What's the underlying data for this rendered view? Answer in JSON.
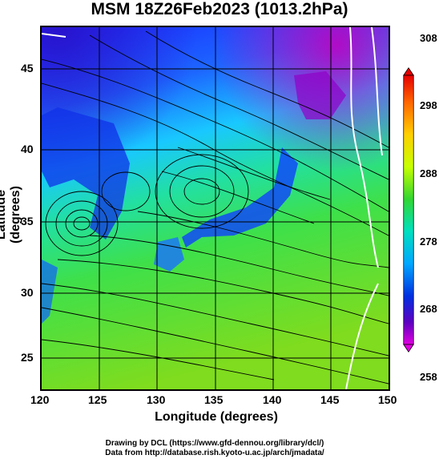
{
  "title": "MSM 18Z26Feb2023 (1013.2hPa)",
  "map": {
    "lon_range": [
      120,
      150
    ],
    "lat_range": [
      22.5,
      48
    ],
    "field": "temperature (K)",
    "streamlines": true,
    "gridlines": true
  },
  "x_axis": {
    "label": "Longitude (degrees)",
    "ticks": [
      "120",
      "125",
      "130",
      "135",
      "140",
      "145",
      "150"
    ]
  },
  "y_axis": {
    "label": "Latitude  (degrees)",
    "ticks": [
      "45",
      "40",
      "35",
      "30",
      "25"
    ]
  },
  "colorbar": {
    "labels": [
      "308",
      "298",
      "288",
      "278",
      "268",
      "258"
    ],
    "colors": [
      "#e60000",
      "#ff8c00",
      "#ffd700",
      "#aaff00",
      "#33cc33",
      "#00e0d0",
      "#0080ff",
      "#0000c0",
      "#cc00cc"
    ]
  },
  "credits": {
    "line1": "Drawing by DCL (https://www.gfd-dennou.org/library/dcl/)",
    "line2": "Data from http://database.rish.kyoto-u.ac.jp/arch/jmadata/"
  }
}
